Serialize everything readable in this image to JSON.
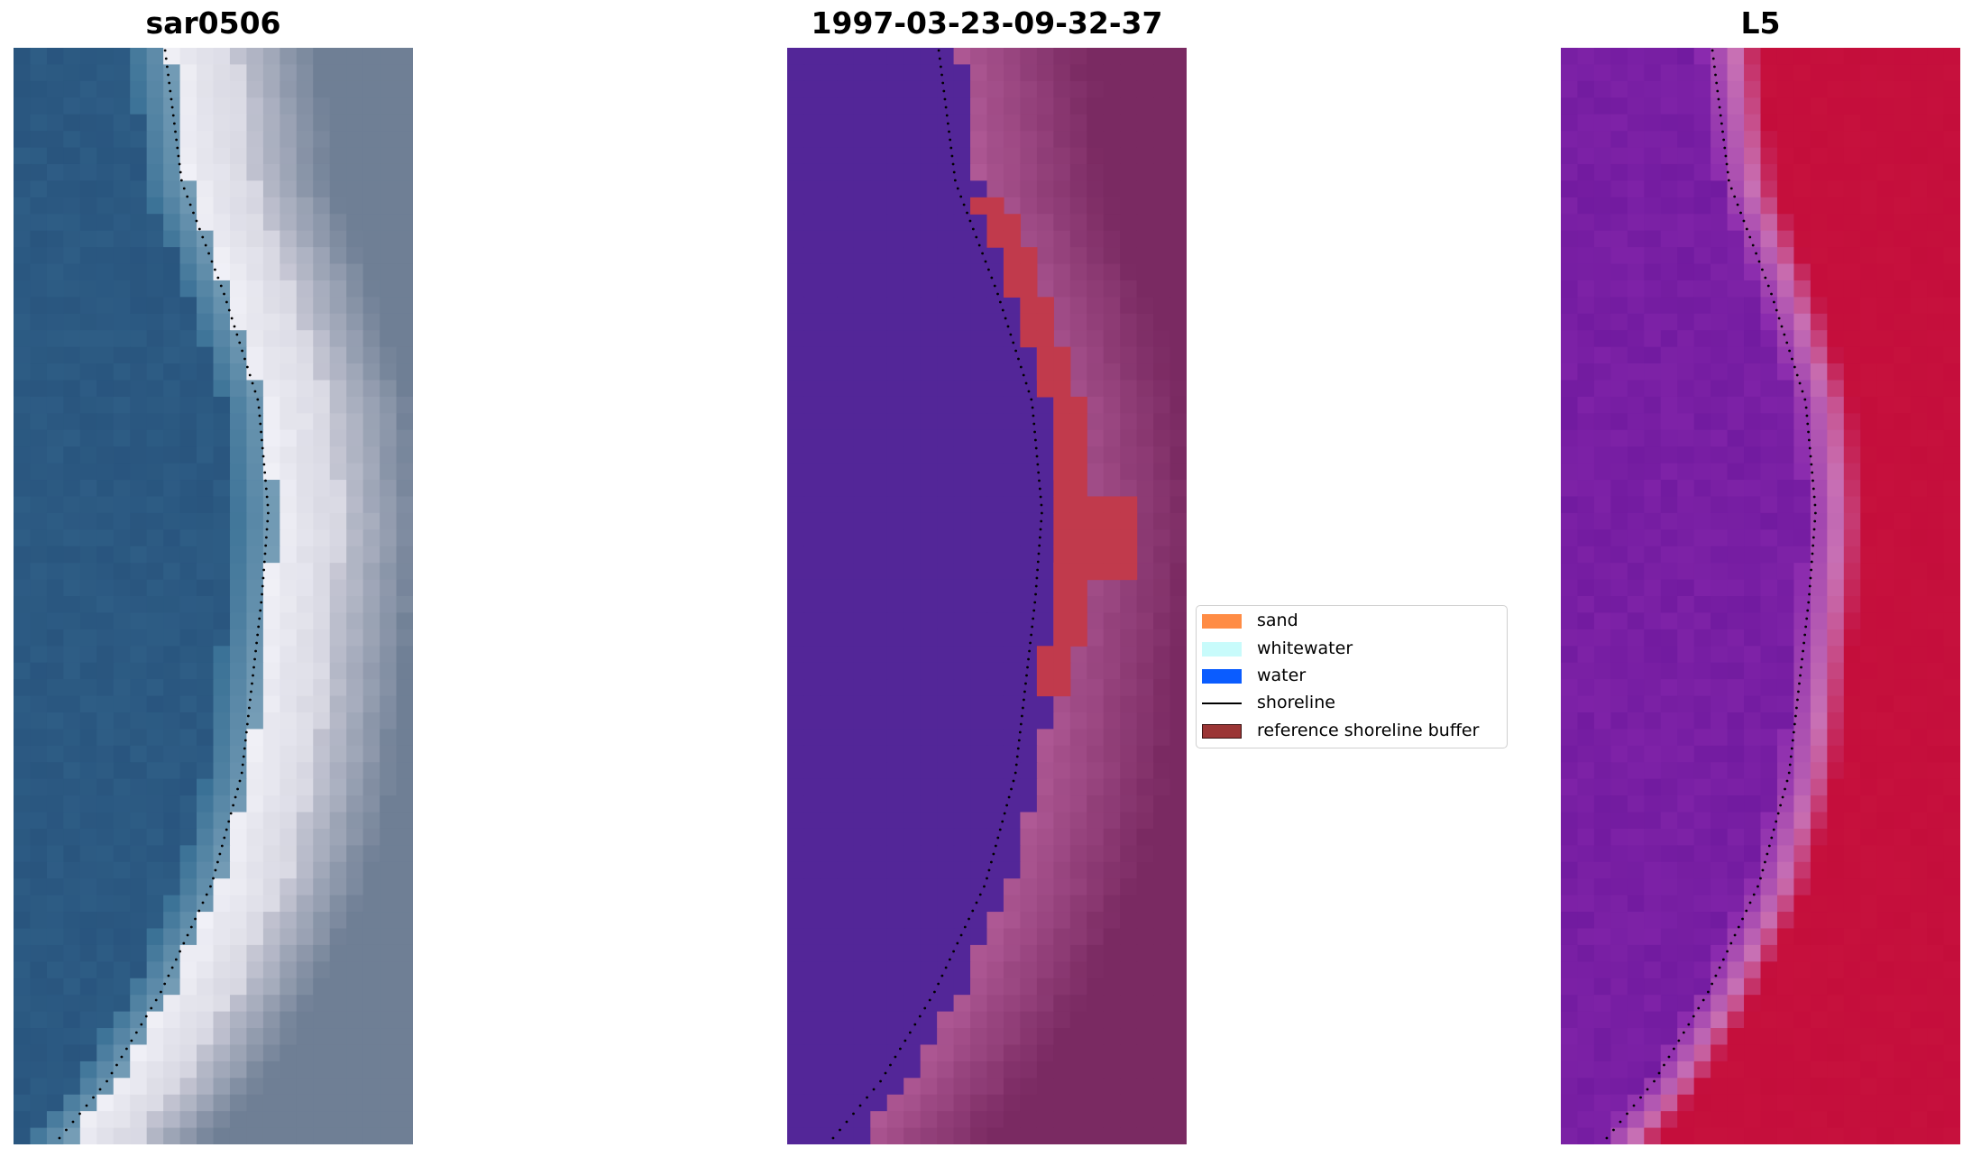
{
  "panels": [
    {
      "title": "sar0506"
    },
    {
      "title": "1997-03-23-09-32-37"
    },
    {
      "title": "L5"
    }
  ],
  "legend": {
    "items": [
      {
        "label": "sand",
        "color": "#ff8c45",
        "kind": "patch"
      },
      {
        "label": "whitewater",
        "color": "#c8fbfb",
        "kind": "patch"
      },
      {
        "label": "water",
        "color": "#0a5cff",
        "kind": "patch"
      },
      {
        "label": "shoreline",
        "color": "#000000",
        "kind": "line"
      },
      {
        "label": "reference shoreline buffer",
        "color": "#9b3535",
        "kind": "patch-outlined"
      }
    ]
  },
  "colors": {
    "rgb_water": "#26507a",
    "rgb_sand": "#c9c9d6",
    "classified_water": "#532698",
    "classified_land": "#9b4a85",
    "classified_buffer": "#c13a4c",
    "index_negative": "#6c179c",
    "index_positive": "#c40d3b"
  }
}
